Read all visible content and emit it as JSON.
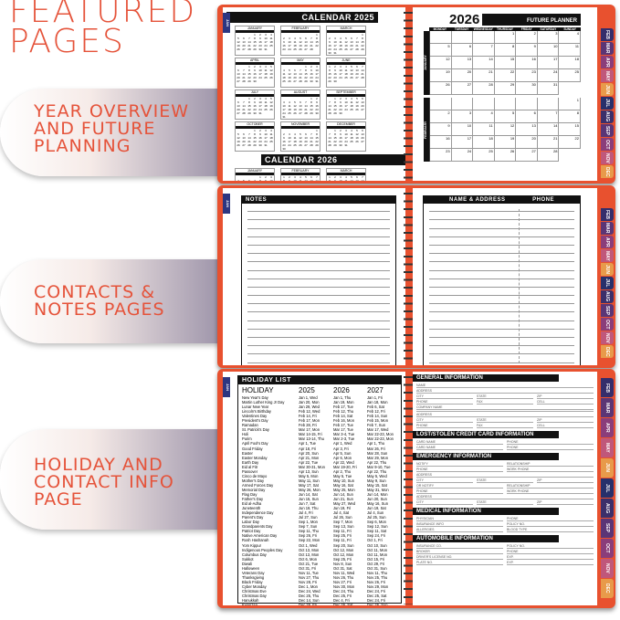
{
  "heading": "FEATURED\nPAGES",
  "features": [
    "YEAR OVERVIEW\nAND FUTURE\nPLANNING",
    "CONTACTS &\nNOTES PAGES",
    "HOLIDAY AND\nCONTACT INFO\nPAGE"
  ],
  "colors": {
    "accent": "#e5533a",
    "cover": "#e8512f",
    "jan_tab": "#2d3680"
  },
  "tabs": [
    {
      "label": "FEB",
      "color": "#342d6b"
    },
    {
      "label": "MAR",
      "color": "#5b3575"
    },
    {
      "label": "APR",
      "color": "#8a3d7a"
    },
    {
      "label": "MAY",
      "color": "#c0577a"
    },
    {
      "label": "JUN",
      "color": "#e89a4a"
    },
    {
      "label": "JUL",
      "color": "#27306b"
    },
    {
      "label": "AUG",
      "color": "#3b2f6a"
    },
    {
      "label": "SEP",
      "color": "#5a3576"
    },
    {
      "label": "OCT",
      "color": "#8a3d7a"
    },
    {
      "label": "NOV",
      "color": "#c0577a"
    },
    {
      "label": "DEC",
      "color": "#e89a4a"
    }
  ],
  "jan_tab": "JAN",
  "months": [
    "JANUARY",
    "FEBRUARY",
    "MARCH",
    "APRIL",
    "MAY",
    "JUNE",
    "JULY",
    "AUGUST",
    "SEPTEMBER",
    "OCTOBER",
    "NOVEMBER",
    "DECEMBER"
  ],
  "calendar_2025": {
    "title": "CALENDAR 2025",
    "year": 2025
  },
  "calendar_2026": {
    "title": "CALENDAR 2026",
    "year": 2026
  },
  "future": {
    "year": "2026",
    "title": "FUTURE PLANNER",
    "weekdays": [
      "MONDAY",
      "TUESDAY",
      "WEDNESDAY",
      "THURSDAY",
      "FRIDAY",
      "SATURDAY",
      "SUNDAY"
    ],
    "months": [
      "JANUARY",
      "FEBRUARY"
    ]
  },
  "notes": {
    "title": "NOTES"
  },
  "contacts": {
    "name_header": "NAME & ADDRESS",
    "phone_header": "PHONE"
  },
  "holidays": {
    "title": "HOLIDAY LIST",
    "headers": [
      "HOLIDAY",
      "2025",
      "2026",
      "2027"
    ],
    "rows": [
      [
        "New Year's Day",
        "Jan 1, Wed",
        "Jan 1, Thu",
        "Jan 1, Fri"
      ],
      [
        "Martin Luther King Jr Day",
        "Jan 20, Mon",
        "Jan 19, Mon",
        "Jan 18, Mon"
      ],
      [
        "Lunar New Year",
        "Jan 29, Wed",
        "Feb 17, Tue",
        "Feb 6, Sat"
      ],
      [
        "Lincoln's Birthday",
        "Feb 12, Wed",
        "Feb 12, Thu",
        "Feb 12, Fri"
      ],
      [
        "Valentines Day",
        "Feb 14, Fri",
        "Feb 14, Sat",
        "Feb 14, Sun"
      ],
      [
        "President's Day",
        "Feb 17, Mon",
        "Feb 16, Mon",
        "Feb 15, Mon"
      ],
      [
        "Ramadan",
        "Feb 28, Fri",
        "Feb 17, Tue",
        "Feb 7, Sun"
      ],
      [
        "St. Patrick's Day",
        "Mar 17, Mon",
        "Mar 17, Tue",
        "Mar 17, Wed"
      ],
      [
        "Holi",
        "Mar 14-15, Fri",
        "Mar 3-4, Tue",
        "Mar 22-23, Mon"
      ],
      [
        "Purim",
        "Mar 13-14, Thu",
        "Mar 2-3, Tue",
        "Mar 22-23, Mon"
      ],
      [
        "April Fool's Day",
        "Apr 1, Tue",
        "Apr 1, Wed",
        "Apr 1, Thu"
      ],
      [
        "Good Friday",
        "Apr 18, Fri",
        "Apr 3, Fri",
        "Mar 26, Fri"
      ],
      [
        "Easter",
        "Apr 20, Sun",
        "Apr 5, Sun",
        "Mar 28, Sun"
      ],
      [
        "Easter Monday",
        "Apr 21, Mon",
        "Apr 6, Mon",
        "Mar 29, Mon"
      ],
      [
        "Earth Day",
        "Apr 22, Tue",
        "Apr 22, Wed",
        "Apr 22, Thu"
      ],
      [
        "Eid al Fitr",
        "Mar 30-31, Mon",
        "Mar 19-20, Fri",
        "Mar 9-10, Tue"
      ],
      [
        "Passover",
        "Apr 13, Sun",
        "Apr 2, Thu",
        "Apr 22, Thu"
      ],
      [
        "Cinco de Mayo",
        "May 5, Mon",
        "May 5, Tue",
        "May 5, Wed"
      ],
      [
        "Mother's Day",
        "May 11, Sun",
        "May 10, Sun",
        "May 9, Sun"
      ],
      [
        "Armed Forces Day",
        "May 17, Sat",
        "May 16, Sat",
        "May 15, Sat"
      ],
      [
        "Memorial Day",
        "May 26, Mon",
        "May 25, Mon",
        "May 31, Mon"
      ],
      [
        "Flag Day",
        "Jun 14, Sat",
        "Jun 14, Sun",
        "Jun 14, Mon"
      ],
      [
        "Father's Day",
        "Jun 15, Sun",
        "Jun 21, Sun",
        "Jun 20, Sun"
      ],
      [
        "Eid al-Adha",
        "Jun 7, Sat",
        "May 27, Wed",
        "May 16, Sun"
      ],
      [
        "Juneteenth",
        "Jun 19, Thu",
        "Jun 19, Fri",
        "Jun 19, Sat"
      ],
      [
        "Independence Day",
        "Jul 4, Fri",
        "Jul 4, Sat",
        "Jul 4, Sun"
      ],
      [
        "Parent's Day",
        "Jul 27, Sun",
        "Jul 26, Sun",
        "Jul 25, Sun"
      ],
      [
        "Labor Day",
        "Sep 1, Mon",
        "Sep 7, Mon",
        "Sep 6, Mon"
      ],
      [
        "Grandparents Day",
        "Sep 7, Sun",
        "Sep 13, Sun",
        "Sep 12, Sun"
      ],
      [
        "Patriot Day",
        "Sep 11, Thu",
        "Sep 11, Fri",
        "Sep 11, Sat"
      ],
      [
        "Native American Day",
        "Sep 26, Fri",
        "Sep 25, Fri",
        "Sep 24, Fri"
      ],
      [
        "Rosh Hashanah",
        "Sep 22, Mon",
        "Sep 11, Fri",
        "Oct 1, Fri"
      ],
      [
        "Yom Kippur",
        "Oct 1, Wed",
        "Sep 20, Sun",
        "Oct 10, Sun"
      ],
      [
        "Indigenous Peoples Day",
        "Oct 13, Mon",
        "Oct 12, Mon",
        "Oct 11, Mon"
      ],
      [
        "Columbus Day",
        "Oct 13, Mon",
        "Oct 12, Mon",
        "Oct 11, Mon"
      ],
      [
        "Sukkot",
        "Oct 6, Mon",
        "Sep 25, Fri",
        "Oct 15, Fri"
      ],
      [
        "Diwali",
        "Oct 21, Tue",
        "Nov 8, Sun",
        "Oct 29, Fri"
      ],
      [
        "Halloween",
        "Oct 31, Fri",
        "Oct 31, Sat",
        "Oct 31, Sun"
      ],
      [
        "Veterans Day",
        "Nov 11, Tue",
        "Nov 11, Wed",
        "Nov 11, Thu"
      ],
      [
        "Thanksgiving",
        "Nov 27, Thu",
        "Nov 26, Thu",
        "Nov 25, Thu"
      ],
      [
        "Black Friday",
        "Nov 28, Fri",
        "Nov 27, Fri",
        "Nov 26, Fri"
      ],
      [
        "Cyber Monday",
        "Dec 1, Mon",
        "Nov 30, Mon",
        "Nov 29, Mon"
      ],
      [
        "Christmas Eve",
        "Dec 24, Wed",
        "Dec 24, Thu",
        "Dec 24, Fri"
      ],
      [
        "Christmas Day",
        "Dec 25, Thu",
        "Dec 25, Fri",
        "Dec 25, Sat"
      ],
      [
        "Hanukkah",
        "Dec 14, Sun",
        "Dec 4, Fri",
        "Dec 24, Fri"
      ],
      [
        "Kwanzaa",
        "Dec 26, Fri",
        "Dec 26, Sat",
        "Dec 26, Sun"
      ],
      [
        "New Year's Eve",
        "Dec 31, Wed",
        "Dec 31, Thu",
        "Dec 31, Fri"
      ]
    ]
  },
  "info": [
    {
      "title": "GENERAL INFORMATION",
      "rows": [
        [
          "NAME"
        ],
        [
          "ADDRESS"
        ],
        [
          "CITY",
          "STATE",
          "ZIP"
        ],
        [
          "PHONE",
          "FAX",
          "CELL"
        ],
        [
          "COMPANY NAME"
        ],
        [
          ""
        ],
        [
          "ADDRESS"
        ],
        [
          "CITY",
          "STATE",
          "ZIP"
        ],
        [
          "PHONE",
          "FAX",
          "CELL"
        ]
      ]
    },
    {
      "title": "LOST/STOLEN CREDIT CARD INFORMATION",
      "rows": [
        [
          "CARD NAME",
          "PHONE"
        ],
        [
          "CARD NAME",
          "PHONE"
        ]
      ]
    },
    {
      "title": "EMERGENCY INFORMATION",
      "rows": [
        [
          "NOTIFY",
          "RELATIONSHIP"
        ],
        [
          "PHONE",
          "WORK PHONE"
        ],
        [
          "ADDRESS"
        ],
        [
          "CITY",
          "STATE",
          "ZIP"
        ],
        [
          "OR NOTIFY",
          "RELATIONSHIP"
        ],
        [
          "PHONE",
          "WORK PHONE"
        ],
        [
          "ADDRESS"
        ],
        [
          "CITY",
          "STATE",
          "ZIP"
        ]
      ]
    },
    {
      "title": "MEDICAL INFORMATION",
      "rows": [
        [
          "PHYSICIAN",
          "PHONE"
        ],
        [
          "INSURANCE INFO",
          "POLICY NO."
        ],
        [
          "ALLERGIES",
          "BLOOD TYPE"
        ]
      ]
    },
    {
      "title": "AUTOMOBILE INFORMATION",
      "rows": [
        [
          "INSURANCE CO.",
          "POLICY NO."
        ],
        [
          "BROKER",
          "PHONE"
        ],
        [
          "DRIVER'S LICENSE NO.",
          "EXP."
        ],
        [
          "PLATE NO.",
          "EXP."
        ]
      ]
    }
  ]
}
